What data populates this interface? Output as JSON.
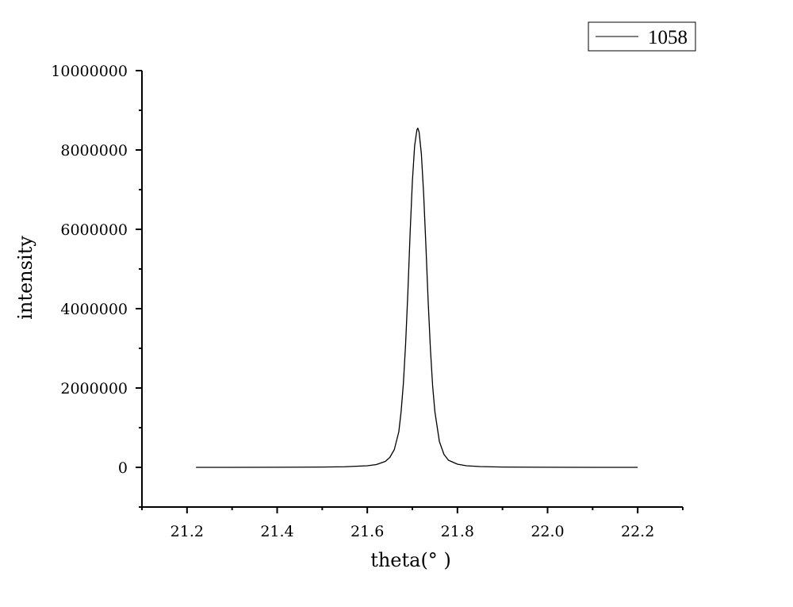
{
  "chart_data": {
    "type": "line",
    "title": "",
    "xlabel": "theta(° )",
    "ylabel": "intensity",
    "xlim": [
      21.1,
      22.3
    ],
    "ylim": [
      -1000000,
      10000000
    ],
    "x_ticks": [
      21.2,
      21.4,
      21.6,
      21.8,
      22.0,
      22.2
    ],
    "x_tick_labels": [
      "21.2",
      "21.4",
      "21.6",
      "21.8",
      "22.0",
      "22.2"
    ],
    "y_ticks": [
      0,
      2000000,
      4000000,
      6000000,
      8000000,
      10000000
    ],
    "y_tick_labels": [
      "0",
      "2000000",
      "4000000",
      "6000000",
      "8000000",
      "10000000"
    ],
    "grid": false,
    "legend_position": "top-right",
    "series": [
      {
        "name": "1058",
        "color": "#000000",
        "x": [
          21.22,
          21.3,
          21.4,
          21.5,
          21.55,
          21.6,
          21.62,
          21.64,
          21.65,
          21.66,
          21.67,
          21.675,
          21.68,
          21.685,
          21.69,
          21.695,
          21.7,
          21.705,
          21.71,
          21.712,
          21.715,
          21.72,
          21.725,
          21.73,
          21.735,
          21.74,
          21.745,
          21.75,
          21.76,
          21.77,
          21.78,
          21.8,
          21.82,
          21.85,
          21.9,
          22.0,
          22.1,
          22.2
        ],
        "y": [
          0,
          0,
          2000,
          8000,
          15000,
          40000,
          70000,
          150000,
          250000,
          450000,
          900000,
          1400000,
          2100000,
          3100000,
          4400000,
          5900000,
          7200000,
          8100000,
          8500000,
          8550000,
          8450000,
          7900000,
          6900000,
          5600000,
          4200000,
          3000000,
          2050000,
          1400000,
          650000,
          330000,
          180000,
          80000,
          40000,
          20000,
          8000,
          2000,
          0,
          0
        ]
      }
    ]
  }
}
